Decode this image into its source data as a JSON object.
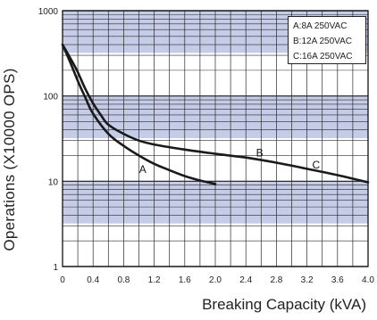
{
  "chart_data": {
    "type": "line",
    "xlabel": "Breaking Capacity (kVA)",
    "ylabel": "Operations (X10000 OPS)",
    "xlim": [
      0,
      4.0
    ],
    "ylim": [
      1,
      1000
    ],
    "yscale": "log",
    "xticks": [
      "0",
      "0.4",
      "0.8",
      "1.2",
      "1.6",
      "2.0",
      "2.4",
      "2.8",
      "3.2",
      "3.6",
      "4.0"
    ],
    "yticks": [
      "1",
      "10",
      "100",
      "1000"
    ],
    "grid": true,
    "legend": {
      "position": "top-right",
      "entries": [
        "A:8A 250VAC",
        "B:12A 250VAC",
        "C:16A 250VAC"
      ]
    },
    "series": [
      {
        "name": "A",
        "x": [
          0.0,
          0.1,
          0.2,
          0.3,
          0.4,
          0.6,
          0.8,
          1.0,
          1.2,
          1.4,
          1.6,
          1.8,
          2.0
        ],
        "y": [
          400,
          250,
          150,
          95,
          62,
          36,
          26,
          20,
          16,
          13.5,
          11.5,
          10.2,
          9.3
        ]
      },
      {
        "name": "B",
        "x": [
          0.0,
          0.1,
          0.2,
          0.3,
          0.4,
          0.5,
          0.6,
          0.8,
          1.0,
          1.2,
          1.6,
          2.0,
          2.4
        ],
        "y": [
          400,
          280,
          190,
          120,
          82,
          60,
          46,
          36,
          30,
          27,
          23.5,
          21,
          19
        ]
      },
      {
        "name": "C",
        "x": [
          2.4,
          2.8,
          3.2,
          3.6,
          4.0
        ],
        "y": [
          19,
          16.5,
          14,
          11.8,
          9.7
        ]
      }
    ],
    "annotations": [
      {
        "text": "A",
        "x": 1.05,
        "y": 12.5
      },
      {
        "text": "B",
        "x": 2.58,
        "y": 19.5
      },
      {
        "text": "C",
        "x": 3.32,
        "y": 14.2
      }
    ]
  }
}
